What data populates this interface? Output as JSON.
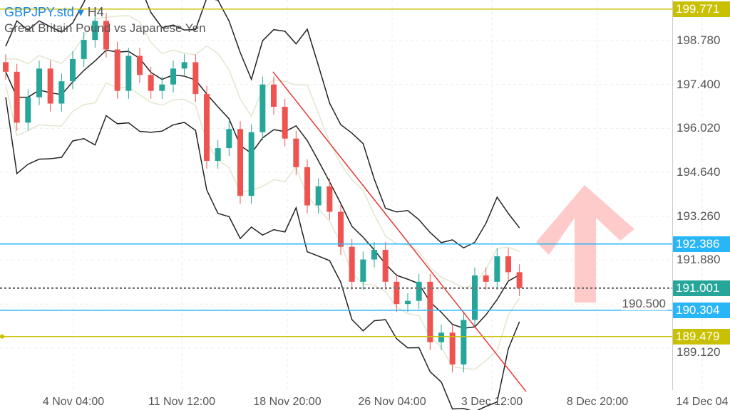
{
  "header": {
    "symbol": "GBPJPY.std",
    "timeframe": "H4",
    "description": "Great Britain Pound vs Japanese Yen"
  },
  "colors": {
    "bull": "#26a69a",
    "bear": "#ef5350",
    "olive": "#c8c000",
    "cyan": "#29b6f6",
    "trend": "#e53935",
    "current": "#26a69a"
  },
  "chart_data": {
    "type": "candlestick",
    "title": "GBPJPY.std H4",
    "ylim": [
      187.75,
      200.05
    ],
    "y_ticks": [
      "198.780",
      "197.400",
      "196.020",
      "194.640",
      "193.260",
      "191.880",
      "190.500",
      "189.120"
    ],
    "x_ticks": [
      "4 Nov 04:00",
      "11 Nov 12:00",
      "18 Nov 20:00",
      "26 Nov 04:00",
      "3 Dec 12:00",
      "8 Dec 20:00",
      "14 Dec 04"
    ],
    "closes": [
      197.8,
      196.2,
      197.0,
      197.9,
      196.8,
      197.5,
      198.2,
      198.8,
      199.4,
      198.5,
      197.2,
      198.3,
      197.7,
      197.2,
      197.4,
      197.9,
      198.1,
      197.1,
      195.0,
      195.4,
      196.0,
      193.9,
      195.9,
      197.4,
      196.7,
      195.7,
      194.8,
      193.6,
      194.2,
      193.4,
      192.3,
      191.2,
      191.9,
      192.2,
      191.2,
      190.5,
      190.6,
      191.2,
      189.3,
      189.6,
      188.6,
      190.0,
      191.4,
      191.2,
      192.0,
      191.5,
      191.0
    ],
    "levels": [
      {
        "label": "199.771",
        "value": 199.771,
        "style": "olive"
      },
      {
        "label": "192.386",
        "value": 192.386,
        "style": "cyan"
      },
      {
        "label": "191.001",
        "value": 191.001,
        "style": "current"
      },
      {
        "label": "190.304",
        "value": 190.304,
        "style": "cyan"
      },
      {
        "label": "189.479",
        "value": 189.479,
        "style": "olive"
      }
    ],
    "trendline": {
      "from": [
        23,
        197.8
      ],
      "to": [
        47,
        187.75
      ]
    },
    "annotation": "up-arrow"
  }
}
